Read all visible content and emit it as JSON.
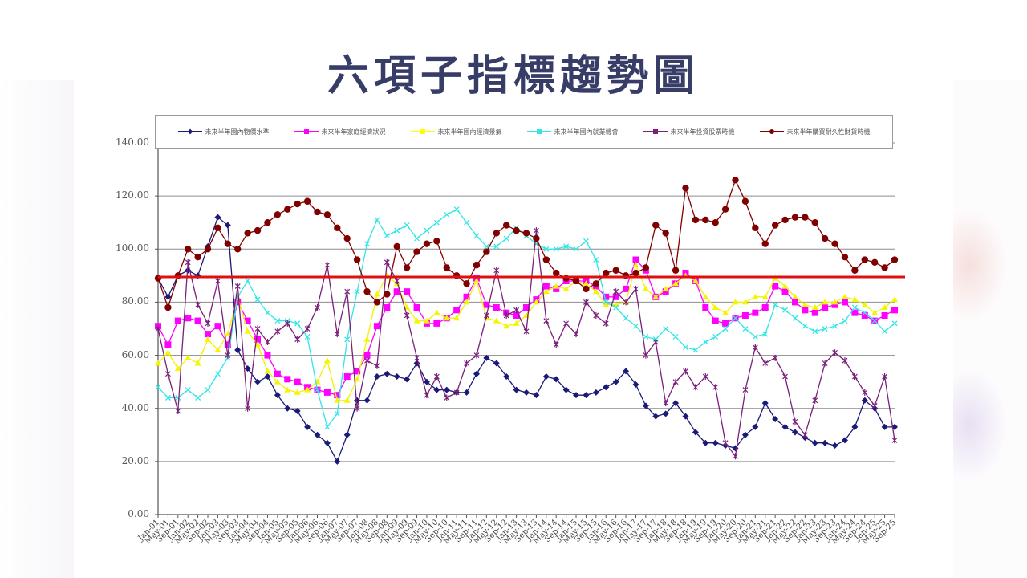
{
  "slide": {
    "title": "六項子指標趨勢圖"
  },
  "legend": [
    {
      "label": "未來半年國內物價水準",
      "color": "#1a1a78",
      "marker": "diamond"
    },
    {
      "label": "未來半年家庭經濟狀況",
      "color": "#ff00ff",
      "marker": "square"
    },
    {
      "label": "未來半年國內經濟景氣",
      "color": "#ffff00",
      "marker": "triangle"
    },
    {
      "label": "未來半年國內就業機會",
      "color": "#33e6e6",
      "marker": "x"
    },
    {
      "label": "未來半年投資股票時機",
      "color": "#7a1f7a",
      "marker": "star"
    },
    {
      "label": "未來半年購買耐久性財貨時機",
      "color": "#800000",
      "marker": "circle"
    }
  ],
  "axis": {
    "y_ticks": [
      "140.00",
      "120.00",
      "100.00",
      "80.00",
      "60.00",
      "40.00",
      "20.00",
      "0.00"
    ]
  },
  "chart_data": {
    "type": "line",
    "title": "六項子指標趨勢圖",
    "xlabel": "",
    "ylabel": "",
    "ylim": [
      0,
      140
    ],
    "grid": true,
    "legend_position": "top",
    "reference_line": {
      "y": 89.5,
      "color": "#e01010"
    },
    "categories": [
      "Jan-01",
      "May-01",
      "Sep-01",
      "Jan-02",
      "May-02",
      "Sep-02",
      "Jan-03",
      "May-03",
      "Sep-03",
      "Jan-04",
      "May-04",
      "Sep-04",
      "Jan-05",
      "May-05",
      "Sep-05",
      "Jan-06",
      "May-06",
      "Sep-06",
      "Jan-07",
      "May-07",
      "Sep-07",
      "Jan-08",
      "May-08",
      "Sep-08",
      "Jan-09",
      "May-09",
      "Sep-09",
      "Jan-10",
      "May-10",
      "Sep-10",
      "Jan-11",
      "May-11",
      "Sep-11",
      "Jan-12",
      "May-12",
      "Sep-12",
      "Jan-13",
      "May-13",
      "Sep-13",
      "Jan-14",
      "May-14",
      "Sep-14",
      "Jan-15",
      "May-15",
      "Sep-15",
      "Jan-16",
      "May-16",
      "Sep-16",
      "Jan-17",
      "May-17",
      "Sep-17",
      "Jan-18",
      "May-18",
      "Sep-18",
      "Jan-19",
      "May-19",
      "Sep-19",
      "Jan-20",
      "May-20",
      "Sep-20",
      "Jan-21",
      "May-21",
      "Sep-21",
      "Jan-22",
      "May-22",
      "Sep-22",
      "Jan-23",
      "May-23",
      "Sep-23",
      "Jan-24",
      "May-24",
      "Sep-24",
      "Jan-25",
      "May-25",
      "Sep-25"
    ],
    "series": [
      {
        "name": "未來半年國內物價水準",
        "values": [
          89,
          82,
          90,
          92,
          90,
          101,
          112,
          109,
          62,
          55,
          50,
          52,
          45,
          40,
          39,
          33,
          30,
          27,
          20,
          30,
          43,
          43,
          52,
          53,
          52,
          51,
          57,
          50,
          47,
          47,
          46,
          46,
          53,
          59,
          57,
          52,
          47,
          46,
          45,
          52,
          51,
          47,
          45,
          45,
          46,
          48,
          50,
          54,
          49,
          41,
          37,
          38,
          42,
          37,
          31,
          27,
          27,
          26,
          25,
          30,
          33,
          42,
          36,
          33,
          31,
          29,
          27,
          27,
          26,
          28,
          33,
          43,
          40,
          33,
          33
        ]
      },
      {
        "name": "未來半年家庭經濟狀況",
        "values": [
          71,
          64,
          73,
          74,
          73,
          68,
          71,
          64,
          80,
          73,
          66,
          60,
          53,
          51,
          50,
          48,
          47,
          46,
          45,
          52,
          54,
          60,
          71,
          78,
          84,
          84,
          78,
          72,
          72,
          74,
          77,
          82,
          89,
          79,
          78,
          76,
          75,
          78,
          81,
          86,
          85,
          88,
          88,
          88,
          86,
          82,
          82,
          85,
          96,
          92,
          82,
          84,
          87,
          91,
          88,
          78,
          73,
          72,
          74,
          75,
          76,
          78,
          86,
          84,
          80,
          77,
          76,
          78,
          79,
          80,
          76,
          75,
          73,
          75,
          77
        ]
      },
      {
        "name": "未來半年國內經濟景氣",
        "values": [
          57,
          61,
          55,
          59,
          57,
          66,
          62,
          68,
          82,
          69,
          64,
          54,
          50,
          47,
          46,
          47,
          50,
          58,
          43,
          43,
          51,
          66,
          83,
          90,
          87,
          78,
          73,
          73,
          76,
          74,
          74,
          80,
          88,
          74,
          73,
          71,
          72,
          75,
          80,
          84,
          86,
          85,
          88,
          87,
          84,
          79,
          79,
          80,
          94,
          85,
          82,
          85,
          87,
          90,
          88,
          82,
          78,
          76,
          80,
          80,
          82,
          82,
          89,
          86,
          82,
          79,
          78,
          80,
          80,
          82,
          81,
          79,
          76,
          78,
          81
        ]
      },
      {
        "name": "未來半年國內就業機會",
        "values": [
          48,
          44,
          44,
          47,
          44,
          47,
          53,
          59,
          82,
          88,
          81,
          76,
          73,
          73,
          72,
          67,
          47,
          33,
          38,
          66,
          84,
          102,
          111,
          105,
          107,
          109,
          104,
          107,
          110,
          113,
          115,
          110,
          105,
          101,
          101,
          104,
          108,
          105,
          102,
          100,
          100,
          101,
          100,
          103,
          96,
          80,
          78,
          74,
          71,
          67,
          66,
          70,
          67,
          63,
          62,
          65,
          67,
          70,
          74,
          70,
          67,
          68,
          79,
          77,
          74,
          71,
          69,
          70,
          71,
          73,
          78,
          76,
          73,
          69,
          72
        ]
      },
      {
        "name": "未來半年投資股票時機",
        "values": [
          70,
          53,
          39,
          95,
          79,
          72,
          88,
          60,
          86,
          40,
          70,
          65,
          69,
          72,
          66,
          70,
          78,
          94,
          68,
          84,
          40,
          58,
          56,
          95,
          88,
          75,
          59,
          45,
          52,
          44,
          46,
          57,
          60,
          75,
          92,
          75,
          77,
          69,
          107,
          73,
          64,
          72,
          68,
          80,
          75,
          72,
          84,
          80,
          85,
          60,
          65,
          42,
          50,
          54,
          48,
          52,
          48,
          27,
          22,
          47,
          63,
          57,
          59,
          52,
          35,
          30,
          43,
          57,
          61,
          58,
          52,
          46,
          41,
          52,
          28
        ]
      },
      {
        "name": "未來半年購買耐久性財貨時機",
        "values": [
          89,
          78,
          90,
          100,
          97,
          100,
          108,
          102,
          100,
          106,
          107,
          110,
          113,
          115,
          117,
          118,
          114,
          113,
          108,
          104,
          96,
          84,
          80,
          83,
          101,
          93,
          99,
          102,
          103,
          93,
          90,
          87,
          94,
          99,
          106,
          109,
          107,
          106,
          104,
          96,
          91,
          89,
          88,
          85,
          87,
          91,
          92,
          90,
          91,
          93,
          109,
          106,
          92,
          123,
          111,
          111,
          110,
          115,
          126,
          118,
          108,
          102,
          109,
          111,
          112,
          112,
          110,
          104,
          102,
          97,
          92,
          96,
          95,
          93,
          96
        ]
      }
    ]
  }
}
